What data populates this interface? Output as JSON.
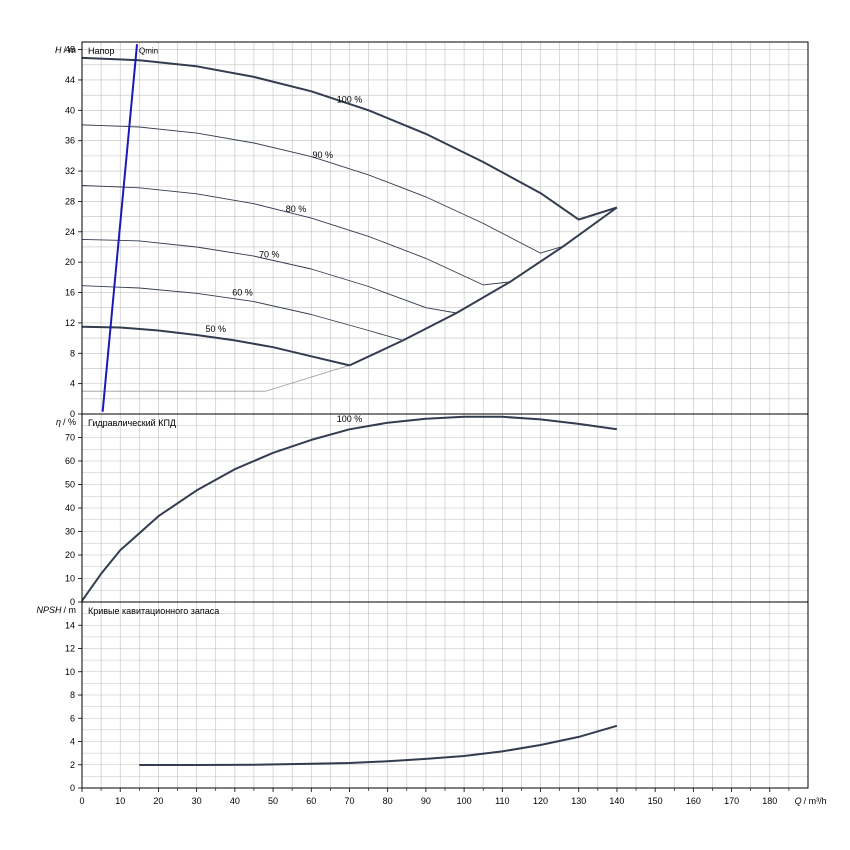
{
  "chart_data": [
    {
      "type": "line",
      "title": "Напор",
      "ylabel_symbol": "H",
      "ylabel_unit": "/ m",
      "xlim": [
        0,
        190
      ],
      "ylim": [
        0,
        49
      ],
      "yticks": [
        0,
        4,
        8,
        12,
        16,
        20,
        24,
        28,
        32,
        36,
        40,
        44,
        48
      ],
      "series": [
        {
          "name": "100 %",
          "x": [
            0,
            15,
            30,
            45,
            60,
            75,
            90,
            105,
            120,
            130,
            140
          ],
          "y": [
            46.9,
            46.6,
            45.8,
            44.4,
            42.5,
            40.0,
            36.9,
            33.2,
            29.1,
            25.6,
            27.2
          ]
        },
        {
          "name": "90 %",
          "x": [
            0,
            15,
            30,
            45,
            60,
            75,
            90,
            105,
            120,
            126
          ],
          "y": [
            38.1,
            37.8,
            37.0,
            35.7,
            33.9,
            31.5,
            28.6,
            25.1,
            21.2,
            22.1
          ]
        },
        {
          "name": "80 %",
          "x": [
            0,
            15,
            30,
            45,
            60,
            75,
            90,
            105,
            112
          ],
          "y": [
            30.1,
            29.8,
            29.0,
            27.7,
            25.8,
            23.4,
            20.5,
            17.0,
            17.4
          ]
        },
        {
          "name": "70 %",
          "x": [
            0,
            15,
            30,
            45,
            60,
            75,
            90,
            98
          ],
          "y": [
            23.0,
            22.8,
            22.0,
            20.8,
            19.1,
            16.8,
            14.0,
            13.3
          ]
        },
        {
          "name": "60 %",
          "x": [
            0,
            15,
            30,
            45,
            60,
            75,
            84
          ],
          "y": [
            16.9,
            16.6,
            15.9,
            14.8,
            13.1,
            11.0,
            9.7
          ]
        },
        {
          "name": "50 %",
          "x": [
            0,
            10,
            20,
            30,
            40,
            50,
            60,
            70
          ],
          "y": [
            11.5,
            11.4,
            11.0,
            10.4,
            9.7,
            8.8,
            7.6,
            6.4
          ]
        }
      ],
      "envelope": {
        "x": [
          70,
          84,
          98,
          112,
          126,
          140
        ],
        "y": [
          6.4,
          9.7,
          13.3,
          17.4,
          22.1,
          27.2
        ]
      },
      "min_flow_line": {
        "label": "Qmin",
        "x": [
          5.4,
          14.4
        ],
        "y": [
          0.3,
          48.7
        ]
      },
      "guide_line": {
        "x": [
          0,
          48,
          70
        ],
        "y": [
          3.0,
          3.0,
          6.4
        ]
      },
      "annotations": [
        {
          "text": "100 %",
          "x": 70,
          "y": 41.0
        },
        {
          "text": "90 %",
          "x": 63,
          "y": 33.7
        },
        {
          "text": "80 %",
          "x": 56,
          "y": 26.6
        },
        {
          "text": "70 %",
          "x": 49,
          "y": 20.6
        },
        {
          "text": "60 %",
          "x": 42,
          "y": 15.6
        },
        {
          "text": "50 %",
          "x": 35,
          "y": 10.8
        }
      ]
    },
    {
      "type": "line",
      "title": "Гидравлический КПД",
      "ylabel_symbol": "η",
      "ylabel_unit": "/ %",
      "xlim": [
        0,
        190
      ],
      "ylim": [
        0,
        80
      ],
      "yticks": [
        0,
        10,
        20,
        30,
        40,
        50,
        60,
        70
      ],
      "series": [
        {
          "name": "100 %",
          "x": [
            0,
            5,
            10,
            20,
            30,
            40,
            50,
            60,
            70,
            80,
            90,
            100,
            110,
            120,
            130,
            140
          ],
          "y": [
            0.5,
            12,
            22,
            36.5,
            47.5,
            56.5,
            63.5,
            69,
            73.5,
            76.3,
            78,
            78.8,
            78.8,
            77.7,
            75.8,
            73.5
          ]
        }
      ],
      "annotations": [
        {
          "text": "100 %",
          "x": 70,
          "y": 76.5
        }
      ]
    },
    {
      "type": "line",
      "title": "Кривые кавитационного запаса",
      "ylabel_symbol": "NPSH",
      "ylabel_unit": "/ m",
      "xlabel_symbol": "Q",
      "xlabel_unit": "/ m³/h",
      "xlim": [
        0,
        190
      ],
      "ylim": [
        0,
        16
      ],
      "xticks": [
        0,
        10,
        20,
        30,
        40,
        50,
        60,
        70,
        80,
        90,
        100,
        110,
        120,
        130,
        140,
        150,
        160,
        170,
        180
      ],
      "yticks": [
        0,
        2,
        4,
        6,
        8,
        10,
        12,
        14
      ],
      "series": [
        {
          "name": "",
          "x": [
            15,
            30,
            45,
            60,
            70,
            80,
            90,
            100,
            110,
            120,
            130,
            140
          ],
          "y": [
            1.98,
            1.98,
            2.0,
            2.08,
            2.15,
            2.3,
            2.5,
            2.75,
            3.15,
            3.7,
            4.4,
            5.35
          ]
        }
      ]
    }
  ],
  "colors": {
    "curve": "#333d4f",
    "min_flow": "#1a1ab4",
    "grid": "#c0c0c0",
    "frame": "#000000",
    "guide": "#9a9a9a"
  }
}
